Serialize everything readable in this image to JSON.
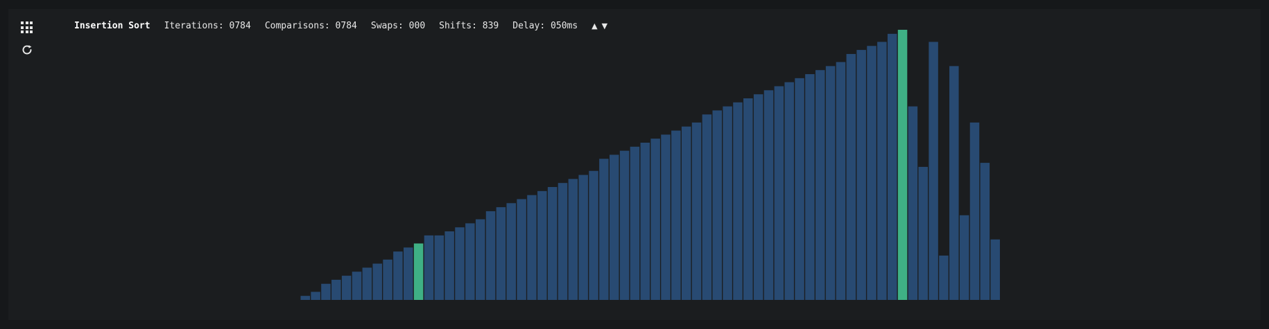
{
  "app": {
    "algorithm": "Insertion Sort",
    "iterations": "Iterations: 0784",
    "comparisons": "Comparisons: 0784",
    "swaps": "Swaps: 000",
    "shifts": "Shifts: 839",
    "delay": "Delay: 050ms",
    "delay_up": "▲",
    "delay_down": "▼"
  },
  "icons": {
    "menu": "grid-icon",
    "reset": "refresh-icon"
  },
  "colors": {
    "bar": "#284a72",
    "highlight": "#3fb085",
    "background": "#1b1d1f",
    "text": "#e8e8e8"
  },
  "visualizer": {
    "values": [
      1,
      2,
      4,
      5,
      6,
      7,
      8,
      9,
      10,
      12,
      13,
      14,
      16,
      16,
      17,
      18,
      19,
      20,
      22,
      23,
      24,
      25,
      26,
      27,
      28,
      29,
      30,
      31,
      32,
      35,
      36,
      37,
      38,
      39,
      40,
      41,
      42,
      43,
      44,
      46,
      47,
      48,
      49,
      50,
      51,
      52,
      53,
      54,
      55,
      56,
      57,
      58,
      59,
      61,
      62,
      63,
      64,
      66,
      67,
      48,
      33,
      64,
      11,
      58,
      21,
      44,
      34,
      15
    ],
    "highlighted": [
      11,
      58
    ],
    "max": 67
  }
}
